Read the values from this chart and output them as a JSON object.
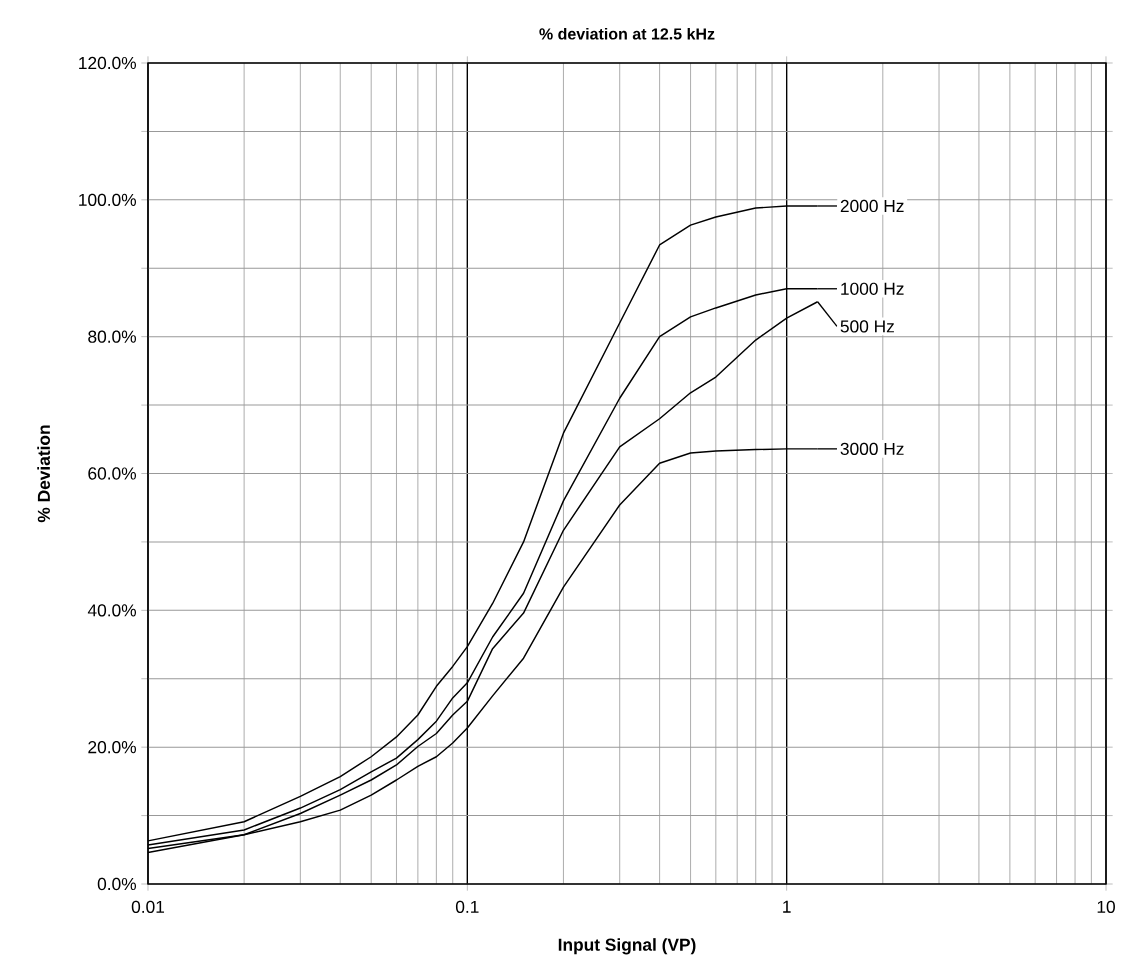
{
  "chart_data": {
    "type": "line",
    "title": "% deviation at 12.5 kHz",
    "xlabel": "Input Signal (VP)",
    "ylabel": "% Deviation",
    "log": "x",
    "grid": true,
    "legend": "right",
    "marker": "none",
    "line_style": "solid",
    "xlim": [
      0.01,
      10
    ],
    "ylim": [
      0,
      120
    ],
    "xticks": [
      0.01,
      0.1,
      1,
      10
    ],
    "yticks": [
      {
        "value": 0,
        "label": "0.0%"
      },
      {
        "value": 10,
        "label": null
      },
      {
        "value": 20,
        "label": "20.0%"
      },
      {
        "value": 30,
        "label": null
      },
      {
        "value": 40,
        "label": "40.0%"
      },
      {
        "value": 50,
        "label": null
      },
      {
        "value": 60,
        "label": "60.0%"
      },
      {
        "value": 70,
        "label": null
      },
      {
        "value": 80,
        "label": "80.0%"
      },
      {
        "value": 90,
        "label": null
      },
      {
        "value": 100,
        "label": "100.0%"
      },
      {
        "value": 110,
        "label": null
      },
      {
        "value": 120,
        "label": "120.0%"
      }
    ],
    "x": [
      0.01,
      0.02,
      0.03,
      0.04,
      0.05,
      0.06,
      0.07,
      0.08,
      0.09,
      0.1,
      0.12,
      0.15,
      0.2,
      0.3,
      0.4,
      0.5,
      0.6,
      0.8,
      1,
      1.25
    ],
    "series": [
      {
        "name": "2000 Hz",
        "color": "#000000",
        "values": [
          6.3,
          9.1,
          12.8,
          15.7,
          18.6,
          21.5,
          24.7,
          28.9,
          31.8,
          34.7,
          41,
          50,
          65.9,
          82,
          93.4,
          96.3,
          97.5,
          98.8,
          99.1,
          99.1
        ]
      },
      {
        "name": "1000 Hz",
        "color": "#000000",
        "values": [
          5.7,
          7.9,
          11.1,
          13.8,
          16.4,
          18.4,
          21.1,
          23.8,
          27.2,
          29.4,
          36.1,
          42.5,
          56,
          71,
          80,
          82.9,
          84.2,
          86.1,
          87,
          87
        ]
      },
      {
        "name": "500 Hz",
        "color": "#000000",
        "values": [
          5.2,
          7.2,
          10.3,
          13,
          15.2,
          17.4,
          20.1,
          22,
          24.7,
          26.7,
          34.4,
          39.6,
          51.7,
          63.9,
          68,
          71.8,
          74.1,
          79.5,
          82.7,
          85.1
        ]
      },
      {
        "name": "3000 Hz",
        "color": "#000000",
        "values": [
          4.6,
          7.2,
          9.1,
          10.8,
          13,
          15.2,
          17.2,
          18.6,
          20.6,
          22.8,
          27.5,
          33,
          43.4,
          55.4,
          61.5,
          63,
          63.3,
          63.5,
          63.6,
          63.6
        ]
      }
    ]
  }
}
